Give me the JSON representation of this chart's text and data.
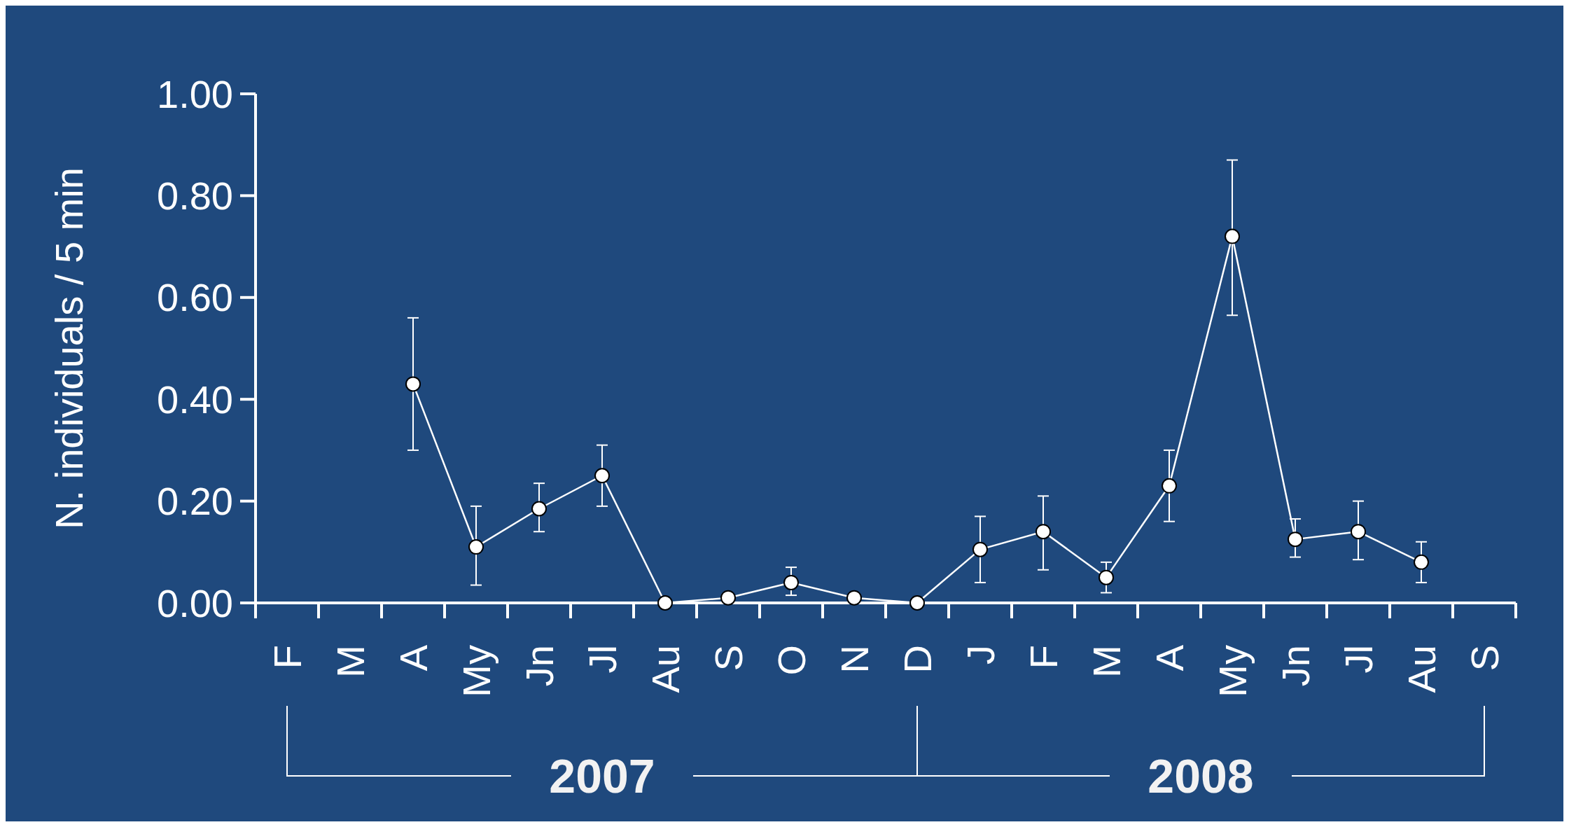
{
  "chart_data": {
    "type": "line",
    "ylabel": "N. individuals / 5 min",
    "categories": [
      "F",
      "M",
      "A",
      "My",
      "Jn",
      "Jl",
      "Au",
      "S",
      "O",
      "N",
      "D",
      "J",
      "F",
      "M",
      "A",
      "My",
      "Jn",
      "Jl",
      "Au",
      "S"
    ],
    "values": [
      null,
      null,
      0.43,
      0.11,
      0.185,
      0.25,
      0,
      0.01,
      0.04,
      0.01,
      0,
      0.105,
      0.14,
      0.05,
      0.23,
      0.72,
      0.125,
      0.14,
      0.08,
      null
    ],
    "errors": [
      null,
      null,
      [
        0.3,
        0.56
      ],
      [
        0.035,
        0.19
      ],
      [
        0.14,
        0.235
      ],
      [
        0.19,
        0.31
      ],
      null,
      null,
      [
        0.015,
        0.07
      ],
      null,
      null,
      [
        0.04,
        0.17
      ],
      [
        0.065,
        0.21
      ],
      [
        0.02,
        0.08
      ],
      [
        0.16,
        0.3
      ],
      [
        0.565,
        0.87
      ],
      [
        0.09,
        0.165
      ],
      [
        0.085,
        0.2
      ],
      [
        0.04,
        0.12
      ],
      null
    ],
    "color": "#ffffff",
    "marker": "circle",
    "line_style": "solid",
    "grid": false,
    "ylim": [
      0,
      1
    ],
    "yticks": [
      {
        "value": 0,
        "label": "0.00"
      },
      {
        "value": 0.2,
        "label": "0.20"
      },
      {
        "value": 0.4,
        "label": "0.40"
      },
      {
        "value": 0.6,
        "label": "0.60"
      },
      {
        "value": 0.8,
        "label": "0.80"
      },
      {
        "value": 1,
        "label": "1.00"
      }
    ],
    "annotations": [
      "2007",
      "2008"
    ]
  }
}
